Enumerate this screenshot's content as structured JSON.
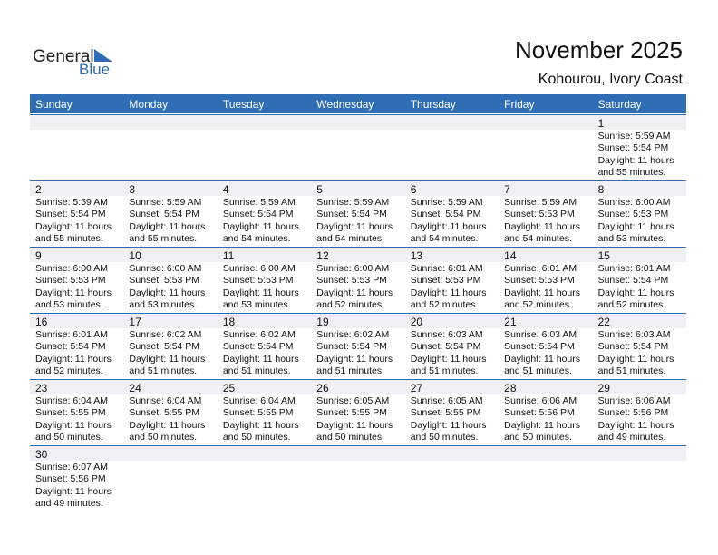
{
  "logo": {
    "general": "General",
    "blue": "Blue"
  },
  "header": {
    "title": "November 2025",
    "location": "Kohourou, Ivory Coast"
  },
  "weekdays": [
    "Sunday",
    "Monday",
    "Tuesday",
    "Wednesday",
    "Thursday",
    "Friday",
    "Saturday"
  ],
  "weeks": [
    [
      null,
      null,
      null,
      null,
      null,
      null,
      {
        "day": "1",
        "lines": [
          "Sunrise: 5:59 AM",
          "Sunset: 5:54 PM",
          "Daylight: 11 hours",
          "and 55 minutes."
        ]
      }
    ],
    [
      {
        "day": "2",
        "lines": [
          "Sunrise: 5:59 AM",
          "Sunset: 5:54 PM",
          "Daylight: 11 hours",
          "and 55 minutes."
        ]
      },
      {
        "day": "3",
        "lines": [
          "Sunrise: 5:59 AM",
          "Sunset: 5:54 PM",
          "Daylight: 11 hours",
          "and 55 minutes."
        ]
      },
      {
        "day": "4",
        "lines": [
          "Sunrise: 5:59 AM",
          "Sunset: 5:54 PM",
          "Daylight: 11 hours",
          "and 54 minutes."
        ]
      },
      {
        "day": "5",
        "lines": [
          "Sunrise: 5:59 AM",
          "Sunset: 5:54 PM",
          "Daylight: 11 hours",
          "and 54 minutes."
        ]
      },
      {
        "day": "6",
        "lines": [
          "Sunrise: 5:59 AM",
          "Sunset: 5:54 PM",
          "Daylight: 11 hours",
          "and 54 minutes."
        ]
      },
      {
        "day": "7",
        "lines": [
          "Sunrise: 5:59 AM",
          "Sunset: 5:53 PM",
          "Daylight: 11 hours",
          "and 54 minutes."
        ]
      },
      {
        "day": "8",
        "lines": [
          "Sunrise: 6:00 AM",
          "Sunset: 5:53 PM",
          "Daylight: 11 hours",
          "and 53 minutes."
        ]
      }
    ],
    [
      {
        "day": "9",
        "lines": [
          "Sunrise: 6:00 AM",
          "Sunset: 5:53 PM",
          "Daylight: 11 hours",
          "and 53 minutes."
        ]
      },
      {
        "day": "10",
        "lines": [
          "Sunrise: 6:00 AM",
          "Sunset: 5:53 PM",
          "Daylight: 11 hours",
          "and 53 minutes."
        ]
      },
      {
        "day": "11",
        "lines": [
          "Sunrise: 6:00 AM",
          "Sunset: 5:53 PM",
          "Daylight: 11 hours",
          "and 53 minutes."
        ]
      },
      {
        "day": "12",
        "lines": [
          "Sunrise: 6:00 AM",
          "Sunset: 5:53 PM",
          "Daylight: 11 hours",
          "and 52 minutes."
        ]
      },
      {
        "day": "13",
        "lines": [
          "Sunrise: 6:01 AM",
          "Sunset: 5:53 PM",
          "Daylight: 11 hours",
          "and 52 minutes."
        ]
      },
      {
        "day": "14",
        "lines": [
          "Sunrise: 6:01 AM",
          "Sunset: 5:53 PM",
          "Daylight: 11 hours",
          "and 52 minutes."
        ]
      },
      {
        "day": "15",
        "lines": [
          "Sunrise: 6:01 AM",
          "Sunset: 5:54 PM",
          "Daylight: 11 hours",
          "and 52 minutes."
        ]
      }
    ],
    [
      {
        "day": "16",
        "lines": [
          "Sunrise: 6:01 AM",
          "Sunset: 5:54 PM",
          "Daylight: 11 hours",
          "and 52 minutes."
        ]
      },
      {
        "day": "17",
        "lines": [
          "Sunrise: 6:02 AM",
          "Sunset: 5:54 PM",
          "Daylight: 11 hours",
          "and 51 minutes."
        ]
      },
      {
        "day": "18",
        "lines": [
          "Sunrise: 6:02 AM",
          "Sunset: 5:54 PM",
          "Daylight: 11 hours",
          "and 51 minutes."
        ]
      },
      {
        "day": "19",
        "lines": [
          "Sunrise: 6:02 AM",
          "Sunset: 5:54 PM",
          "Daylight: 11 hours",
          "and 51 minutes."
        ]
      },
      {
        "day": "20",
        "lines": [
          "Sunrise: 6:03 AM",
          "Sunset: 5:54 PM",
          "Daylight: 11 hours",
          "and 51 minutes."
        ]
      },
      {
        "day": "21",
        "lines": [
          "Sunrise: 6:03 AM",
          "Sunset: 5:54 PM",
          "Daylight: 11 hours",
          "and 51 minutes."
        ]
      },
      {
        "day": "22",
        "lines": [
          "Sunrise: 6:03 AM",
          "Sunset: 5:54 PM",
          "Daylight: 11 hours",
          "and 51 minutes."
        ]
      }
    ],
    [
      {
        "day": "23",
        "lines": [
          "Sunrise: 6:04 AM",
          "Sunset: 5:55 PM",
          "Daylight: 11 hours",
          "and 50 minutes."
        ]
      },
      {
        "day": "24",
        "lines": [
          "Sunrise: 6:04 AM",
          "Sunset: 5:55 PM",
          "Daylight: 11 hours",
          "and 50 minutes."
        ]
      },
      {
        "day": "25",
        "lines": [
          "Sunrise: 6:04 AM",
          "Sunset: 5:55 PM",
          "Daylight: 11 hours",
          "and 50 minutes."
        ]
      },
      {
        "day": "26",
        "lines": [
          "Sunrise: 6:05 AM",
          "Sunset: 5:55 PM",
          "Daylight: 11 hours",
          "and 50 minutes."
        ]
      },
      {
        "day": "27",
        "lines": [
          "Sunrise: 6:05 AM",
          "Sunset: 5:55 PM",
          "Daylight: 11 hours",
          "and 50 minutes."
        ]
      },
      {
        "day": "28",
        "lines": [
          "Sunrise: 6:06 AM",
          "Sunset: 5:56 PM",
          "Daylight: 11 hours",
          "and 50 minutes."
        ]
      },
      {
        "day": "29",
        "lines": [
          "Sunrise: 6:06 AM",
          "Sunset: 5:56 PM",
          "Daylight: 11 hours",
          "and 49 minutes."
        ]
      }
    ],
    [
      {
        "day": "30",
        "lines": [
          "Sunrise: 6:07 AM",
          "Sunset: 5:56 PM",
          "Daylight: 11 hours",
          "and 49 minutes."
        ]
      },
      null,
      null,
      null,
      null,
      null,
      null
    ]
  ]
}
